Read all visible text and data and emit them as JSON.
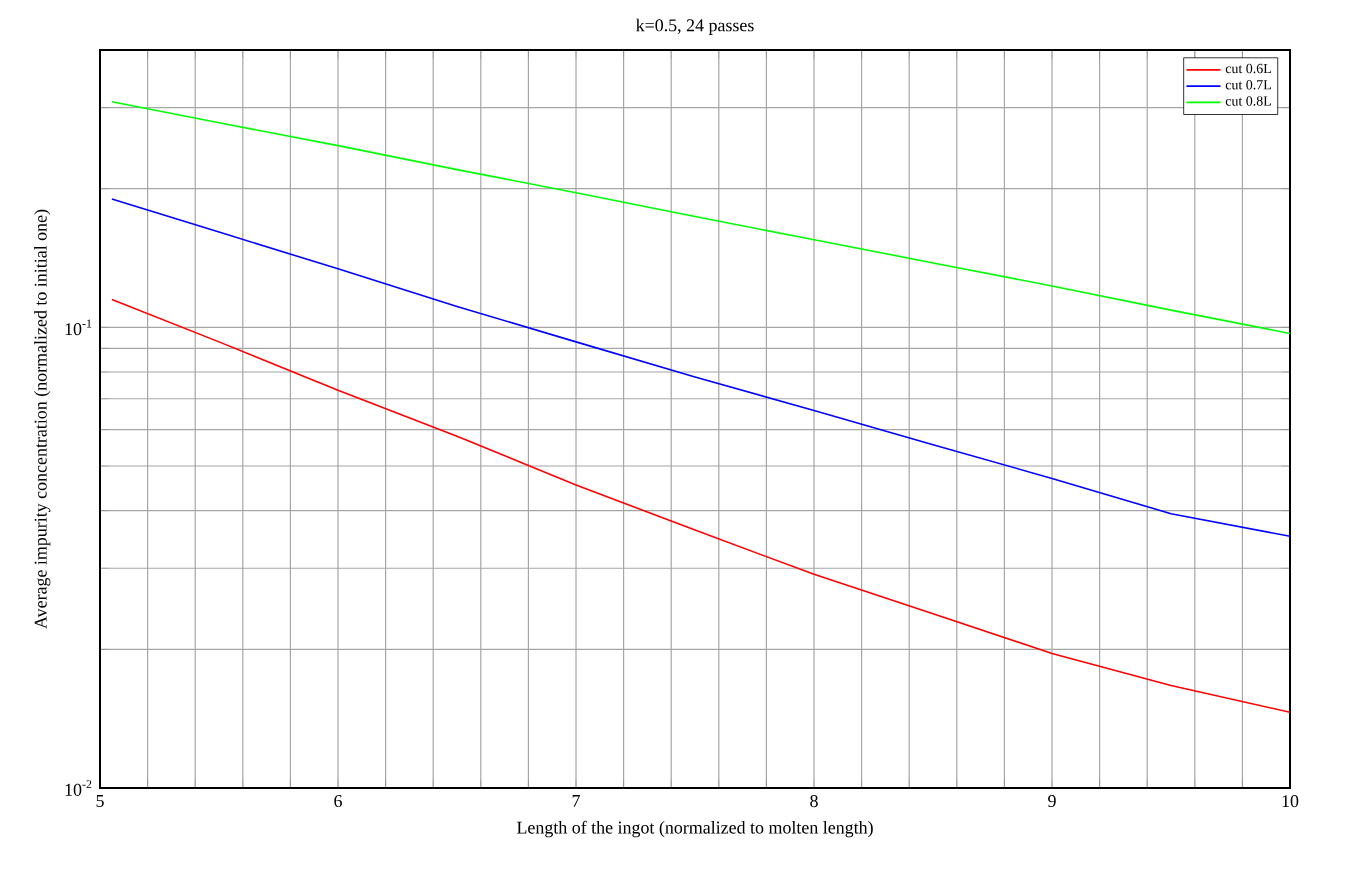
{
  "chart_data": {
    "type": "line",
    "title": "k=0.5, 24 passes",
    "xlabel": "Length of the ingot (normalized to molten length)",
    "ylabel": "Average impurity concentration (normalized to initial one)",
    "log": "y",
    "grid": true,
    "legend": "top right",
    "xlim": [
      5,
      10
    ],
    "ylim": [
      0.01,
      0.4
    ],
    "xticks": [
      5,
      {
        "value": 5.2,
        "label": null
      },
      {
        "value": 5.4,
        "label": null
      },
      {
        "value": 5.6,
        "label": null
      },
      {
        "value": 5.8,
        "label": null
      },
      6,
      {
        "value": 6.2,
        "label": null
      },
      {
        "value": 6.4,
        "label": null
      },
      {
        "value": 6.6,
        "label": null
      },
      {
        "value": 6.8,
        "label": null
      },
      7,
      {
        "value": 7.2,
        "label": null
      },
      {
        "value": 7.4,
        "label": null
      },
      {
        "value": 7.6,
        "label": null
      },
      {
        "value": 7.8,
        "label": null
      },
      8,
      {
        "value": 8.2,
        "label": null
      },
      {
        "value": 8.4,
        "label": null
      },
      {
        "value": 8.6,
        "label": null
      },
      {
        "value": 8.8,
        "label": null
      },
      9,
      {
        "value": 9.2,
        "label": null
      },
      {
        "value": 9.4,
        "label": null
      },
      {
        "value": 9.6,
        "label": null
      },
      {
        "value": 9.8,
        "label": null
      },
      10
    ],
    "yticks": [
      {
        "value": 0.01,
        "label": "10$^{-2}$"
      },
      {
        "value": 0.02,
        "label": null
      },
      {
        "value": 0.03,
        "label": null
      },
      {
        "value": 0.04,
        "label": null
      },
      {
        "value": 0.05,
        "label": null
      },
      {
        "value": 0.06,
        "label": null
      },
      {
        "value": 0.07,
        "label": null
      },
      {
        "value": 0.08,
        "label": null
      },
      {
        "value": 0.09,
        "label": null
      },
      {
        "value": 0.1,
        "label": "10$^{-1}$"
      },
      {
        "value": 0.2,
        "label": null
      },
      {
        "value": 0.3,
        "label": null
      },
      {
        "value": 0.4,
        "label": null
      }
    ],
    "x": [
      5.05,
      5.5,
      6,
      6.5,
      7,
      7.5,
      8,
      8.5,
      9,
      9.5,
      10
    ],
    "series": [
      {
        "name": "cut  0.6L",
        "color": "#ff0000",
        "values": [
          0.115,
          0.093,
          0.073,
          0.058,
          0.0455,
          0.0363,
          0.0291,
          0.0239,
          0.0196,
          0.0167,
          0.0146
        ]
      },
      {
        "name": "cut  0.7L",
        "color": "#0000ff",
        "values": [
          0.19,
          0.161,
          0.134,
          0.111,
          0.093,
          0.078,
          0.066,
          0.0556,
          0.047,
          0.0394,
          0.0352
        ]
      },
      {
        "name": "cut  0.8L",
        "color": "#00ff00",
        "values": [
          0.309,
          0.278,
          0.248,
          0.22,
          0.196,
          0.174,
          0.155,
          0.138,
          0.123,
          0.109,
          0.097
        ]
      }
    ]
  }
}
